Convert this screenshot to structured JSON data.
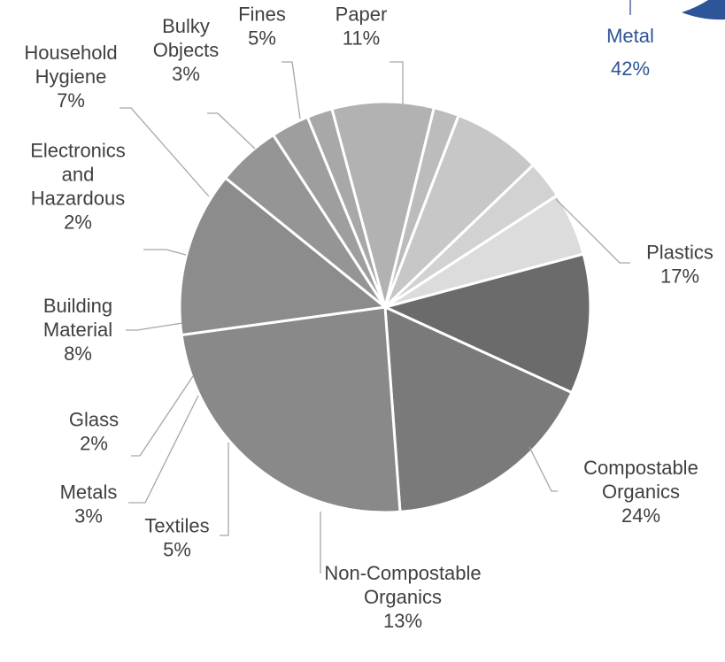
{
  "chart_data": [
    {
      "type": "pie",
      "title": "",
      "slices": [
        {
          "label": "Paper",
          "value": 11,
          "display": "11%",
          "color": "#6b6b6b"
        },
        {
          "label": "Plastics",
          "value": 17,
          "display": "17%",
          "color": "#7a7a7a"
        },
        {
          "label": "Compostable Organics",
          "value": 24,
          "display": "24%",
          "color": "#898989"
        },
        {
          "label": "Non-Compostable Organics",
          "value": 13,
          "display": "13%",
          "color": "#8c8c8c"
        },
        {
          "label": "Textiles",
          "value": 5,
          "display": "5%",
          "color": "#959595"
        },
        {
          "label": "Metals",
          "value": 3,
          "display": "3%",
          "color": "#9e9e9e"
        },
        {
          "label": "Glass",
          "value": 2,
          "display": "2%",
          "color": "#a8a8a8"
        },
        {
          "label": "Building Material",
          "value": 8,
          "display": "8%",
          "color": "#b2b2b2"
        },
        {
          "label": "Electronics and Hazardous",
          "value": 2,
          "display": "2%",
          "color": "#bcbcbc"
        },
        {
          "label": "Household Hygiene",
          "value": 7,
          "display": "7%",
          "color": "#c7c7c7"
        },
        {
          "label": "Bulky Objects",
          "value": 3,
          "display": "3%",
          "color": "#d2d2d2"
        },
        {
          "label": "Fines",
          "value": 5,
          "display": "5%",
          "color": "#dcdcdc"
        }
      ]
    },
    {
      "type": "pie",
      "title": "",
      "note": "partially visible chart at top-right",
      "slices": [
        {
          "label": "Metal",
          "value": 42,
          "display": "42%",
          "color": "#2e5597"
        }
      ]
    }
  ]
}
